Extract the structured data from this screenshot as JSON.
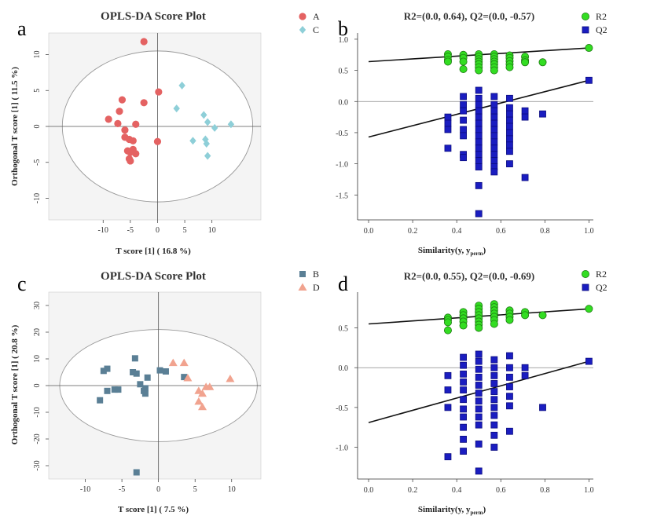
{
  "panel_letters": [
    "a",
    "b",
    "c",
    "d"
  ],
  "colors": {
    "A": "#E46262",
    "C": "#8ECFD8",
    "B": "#5A7F95",
    "D": "#F1A38F",
    "R2": "#33DD22",
    "Q2": "#1A1DC0",
    "plot_bg": "#F4F4F4"
  },
  "chart_data": [
    {
      "id": "a",
      "type": "scatter",
      "title": "OPLS-DA Score Plot",
      "xlabel": "T score [1] ( 16.8 %)",
      "ylabel": "Orthogonal T score [1] ( 11.5 %)",
      "xlim": [
        -20,
        19
      ],
      "ylim": [
        -13,
        13
      ],
      "xticks": [
        -10,
        -5,
        0,
        5,
        10
      ],
      "yticks": [
        -10,
        -5,
        0,
        5,
        10
      ],
      "ellipse": {
        "rx": 17.5,
        "ry": 10.5
      },
      "series": [
        {
          "name": "A",
          "marker": "circle",
          "points": [
            [
              -2.5,
              11.8
            ],
            [
              0.2,
              4.8
            ],
            [
              -2.5,
              3.3
            ],
            [
              -6.5,
              3.7
            ],
            [
              -7,
              2.1
            ],
            [
              -9,
              1.0
            ],
            [
              -7.3,
              0.4
            ],
            [
              -4,
              0.3
            ],
            [
              -6,
              -0.5
            ],
            [
              -6,
              -1.5
            ],
            [
              -5.2,
              -1.8
            ],
            [
              -4.5,
              -2.0
            ],
            [
              0,
              -2.1
            ],
            [
              -5.5,
              -3.4
            ],
            [
              -4.5,
              -3.2
            ],
            [
              -5,
              -3.6
            ],
            [
              -4,
              -3.8
            ],
            [
              -5.2,
              -4.5
            ],
            [
              -5,
              -4.8
            ]
          ]
        },
        {
          "name": "C",
          "marker": "diamond",
          "points": [
            [
              4.5,
              5.7
            ],
            [
              3.5,
              2.5
            ],
            [
              8.5,
              1.6
            ],
            [
              9.2,
              0.6
            ],
            [
              13.5,
              0.3
            ],
            [
              10.5,
              -0.2
            ],
            [
              6.5,
              -2.0
            ],
            [
              8.8,
              -1.8
            ],
            [
              9,
              -2.4
            ],
            [
              9.2,
              -4.1
            ]
          ]
        }
      ],
      "legend_position": "top-right"
    },
    {
      "id": "b",
      "type": "scatter",
      "title": "R2=(0.0, 0.64), Q2=(0.0, -0.57)",
      "xlabel": "Similarity(y, y",
      "xlabel_sub": "perm",
      "xlabel_end": ")",
      "xlim": [
        -0.05,
        1.02
      ],
      "ylim": [
        -1.9,
        1.1
      ],
      "xticks": [
        0.0,
        0.2,
        0.4,
        0.6,
        0.8,
        1.0
      ],
      "yticks": [
        -1.5,
        -1.0,
        -0.5,
        0.0,
        0.5,
        1.0
      ],
      "fit_lines": [
        {
          "name": "R2",
          "from": [
            0,
            0.64
          ],
          "to": [
            1,
            0.86
          ]
        },
        {
          "name": "Q2",
          "from": [
            0,
            -0.57
          ],
          "to": [
            1,
            0.34
          ]
        }
      ],
      "series": [
        {
          "name": "R2",
          "marker": "circle",
          "points": [
            [
              0.36,
              0.76
            ],
            [
              0.36,
              0.72
            ],
            [
              0.36,
              0.67
            ],
            [
              0.36,
              0.64
            ],
            [
              0.43,
              0.75
            ],
            [
              0.43,
              0.7
            ],
            [
              0.43,
              0.64
            ],
            [
              0.43,
              0.52
            ],
            [
              0.5,
              0.76
            ],
            [
              0.5,
              0.72
            ],
            [
              0.5,
              0.68
            ],
            [
              0.5,
              0.64
            ],
            [
              0.5,
              0.6
            ],
            [
              0.5,
              0.55
            ],
            [
              0.5,
              0.5
            ],
            [
              0.57,
              0.76
            ],
            [
              0.57,
              0.72
            ],
            [
              0.57,
              0.68
            ],
            [
              0.57,
              0.64
            ],
            [
              0.57,
              0.6
            ],
            [
              0.57,
              0.55
            ],
            [
              0.57,
              0.5
            ],
            [
              0.64,
              0.74
            ],
            [
              0.64,
              0.7
            ],
            [
              0.64,
              0.65
            ],
            [
              0.64,
              0.6
            ],
            [
              0.64,
              0.55
            ],
            [
              0.71,
              0.72
            ],
            [
              0.71,
              0.66
            ],
            [
              0.71,
              0.63
            ],
            [
              0.79,
              0.63
            ],
            [
              1.0,
              0.86
            ]
          ]
        },
        {
          "name": "Q2",
          "marker": "square",
          "points": [
            [
              0.36,
              -0.25
            ],
            [
              0.36,
              -0.35
            ],
            [
              0.36,
              -0.45
            ],
            [
              0.36,
              -0.75
            ],
            [
              0.43,
              0.08
            ],
            [
              0.43,
              -0.05
            ],
            [
              0.43,
              -0.15
            ],
            [
              0.43,
              -0.3
            ],
            [
              0.43,
              -0.45
            ],
            [
              0.43,
              -0.55
            ],
            [
              0.43,
              -0.85
            ],
            [
              0.43,
              -0.9
            ],
            [
              0.5,
              0.18
            ],
            [
              0.5,
              0.05
            ],
            [
              0.5,
              -0.05
            ],
            [
              0.5,
              -0.15
            ],
            [
              0.5,
              -0.25
            ],
            [
              0.5,
              -0.35
            ],
            [
              0.5,
              -0.45
            ],
            [
              0.5,
              -0.55
            ],
            [
              0.5,
              -0.65
            ],
            [
              0.5,
              -0.75
            ],
            [
              0.5,
              -0.85
            ],
            [
              0.5,
              -0.95
            ],
            [
              0.5,
              -1.05
            ],
            [
              0.5,
              -1.35
            ],
            [
              0.5,
              -1.8
            ],
            [
              0.57,
              0.08
            ],
            [
              0.57,
              -0.05
            ],
            [
              0.57,
              -0.15
            ],
            [
              0.57,
              -0.25
            ],
            [
              0.57,
              -0.35
            ],
            [
              0.57,
              -0.45
            ],
            [
              0.57,
              -0.55
            ],
            [
              0.57,
              -0.65
            ],
            [
              0.57,
              -0.75
            ],
            [
              0.57,
              -0.85
            ],
            [
              0.57,
              -0.95
            ],
            [
              0.57,
              -1.05
            ],
            [
              0.57,
              -1.13
            ],
            [
              0.64,
              0.05
            ],
            [
              0.64,
              -0.1
            ],
            [
              0.64,
              -0.2
            ],
            [
              0.64,
              -0.3
            ],
            [
              0.64,
              -0.4
            ],
            [
              0.64,
              -0.5
            ],
            [
              0.64,
              -0.6
            ],
            [
              0.64,
              -0.7
            ],
            [
              0.64,
              -0.8
            ],
            [
              0.64,
              -1.0
            ],
            [
              0.71,
              -0.15
            ],
            [
              0.71,
              -0.25
            ],
            [
              0.71,
              -1.22
            ],
            [
              0.79,
              -0.2
            ],
            [
              1.0,
              0.34
            ]
          ]
        }
      ],
      "legend_position": "top-right"
    },
    {
      "id": "c",
      "type": "scatter",
      "title": "OPLS-DA Score Plot",
      "xlabel": "T score [1] ( 7.5 %)",
      "ylabel": "Orthogonal T score [1] ( 20.8 %)",
      "xlim": [
        -15,
        14
      ],
      "ylim": [
        -35,
        35
      ],
      "xticks": [
        -10,
        -5,
        0,
        5,
        10
      ],
      "yticks": [
        -30,
        -20,
        -10,
        0,
        10,
        20,
        30
      ],
      "ellipse": {
        "rx": 13.5,
        "ry": 21
      },
      "series": [
        {
          "name": "B",
          "marker": "square",
          "points": [
            [
              -3.2,
              10.2
            ],
            [
              -7,
              6.3
            ],
            [
              -7.5,
              5.5
            ],
            [
              -3.5,
              5.0
            ],
            [
              -3,
              4.5
            ],
            [
              0.2,
              5.7
            ],
            [
              1,
              5.3
            ],
            [
              -1.5,
              3.0
            ],
            [
              3.5,
              3.2
            ],
            [
              -6,
              -1.5
            ],
            [
              -7,
              -2.0
            ],
            [
              -5.5,
              -1.5
            ],
            [
              -2.5,
              0.5
            ],
            [
              -1.8,
              -1.0
            ],
            [
              -2,
              -2.0
            ],
            [
              -1.8,
              -3.0
            ],
            [
              -8,
              -5.5
            ],
            [
              -3,
              -32.5
            ]
          ]
        },
        {
          "name": "D",
          "marker": "triangle",
          "points": [
            [
              2,
              8.5
            ],
            [
              3.5,
              8.5
            ],
            [
              4,
              2.8
            ],
            [
              9.8,
              2.5
            ],
            [
              6.5,
              -0.5
            ],
            [
              7,
              -0.5
            ],
            [
              5.5,
              -2.0
            ],
            [
              6,
              -3.0
            ],
            [
              5.5,
              -6.0
            ],
            [
              6,
              -8.0
            ]
          ]
        }
      ],
      "legend_position": "top-right"
    },
    {
      "id": "d",
      "type": "scatter",
      "title": "R2=(0.0, 0.55), Q2=(0.0, -0.69)",
      "xlabel": "Similarity(y, y",
      "xlabel_sub": "perm",
      "xlabel_end": ")",
      "xlim": [
        -0.05,
        1.02
      ],
      "ylim": [
        -1.4,
        0.95
      ],
      "xticks": [
        0.0,
        0.2,
        0.4,
        0.6,
        0.8,
        1.0
      ],
      "yticks": [
        -1.0,
        -0.5,
        0.0,
        0.5
      ],
      "fit_lines": [
        {
          "name": "R2",
          "from": [
            0,
            0.55
          ],
          "to": [
            1,
            0.74
          ]
        },
        {
          "name": "Q2",
          "from": [
            0,
            -0.69
          ],
          "to": [
            1,
            0.08
          ]
        }
      ],
      "series": [
        {
          "name": "R2",
          "marker": "circle",
          "points": [
            [
              0.36,
              0.63
            ],
            [
              0.36,
              0.6
            ],
            [
              0.36,
              0.57
            ],
            [
              0.36,
              0.47
            ],
            [
              0.43,
              0.7
            ],
            [
              0.43,
              0.66
            ],
            [
              0.43,
              0.62
            ],
            [
              0.43,
              0.58
            ],
            [
              0.43,
              0.53
            ],
            [
              0.5,
              0.78
            ],
            [
              0.5,
              0.74
            ],
            [
              0.5,
              0.7
            ],
            [
              0.5,
              0.66
            ],
            [
              0.5,
              0.62
            ],
            [
              0.5,
              0.58
            ],
            [
              0.5,
              0.54
            ],
            [
              0.5,
              0.5
            ],
            [
              0.57,
              0.8
            ],
            [
              0.57,
              0.76
            ],
            [
              0.57,
              0.72
            ],
            [
              0.57,
              0.68
            ],
            [
              0.57,
              0.64
            ],
            [
              0.57,
              0.6
            ],
            [
              0.57,
              0.55
            ],
            [
              0.64,
              0.72
            ],
            [
              0.64,
              0.68
            ],
            [
              0.64,
              0.64
            ],
            [
              0.64,
              0.6
            ],
            [
              0.71,
              0.7
            ],
            [
              0.71,
              0.66
            ],
            [
              0.79,
              0.66
            ],
            [
              1.0,
              0.74
            ]
          ]
        },
        {
          "name": "Q2",
          "marker": "square",
          "points": [
            [
              0.36,
              -0.1
            ],
            [
              0.36,
              -0.28
            ],
            [
              0.36,
              -0.5
            ],
            [
              0.36,
              -1.12
            ],
            [
              0.43,
              0.13
            ],
            [
              0.43,
              0.03
            ],
            [
              0.43,
              -0.08
            ],
            [
              0.43,
              -0.18
            ],
            [
              0.43,
              -0.28
            ],
            [
              0.43,
              -0.4
            ],
            [
              0.43,
              -0.52
            ],
            [
              0.43,
              -0.62
            ],
            [
              0.43,
              -0.75
            ],
            [
              0.43,
              -0.9
            ],
            [
              0.43,
              -1.05
            ],
            [
              0.5,
              0.17
            ],
            [
              0.5,
              0.08
            ],
            [
              0.5,
              -0.02
            ],
            [
              0.5,
              -0.12
            ],
            [
              0.5,
              -0.22
            ],
            [
              0.5,
              -0.32
            ],
            [
              0.5,
              -0.42
            ],
            [
              0.5,
              -0.52
            ],
            [
              0.5,
              -0.62
            ],
            [
              0.5,
              -0.72
            ],
            [
              0.5,
              -0.96
            ],
            [
              0.5,
              -1.3
            ],
            [
              0.57,
              0.1
            ],
            [
              0.57,
              0.0
            ],
            [
              0.57,
              -0.1
            ],
            [
              0.57,
              -0.2
            ],
            [
              0.57,
              -0.3
            ],
            [
              0.57,
              -0.4
            ],
            [
              0.57,
              -0.5
            ],
            [
              0.57,
              -0.6
            ],
            [
              0.57,
              -0.72
            ],
            [
              0.57,
              -0.85
            ],
            [
              0.57,
              -1.0
            ],
            [
              0.64,
              0.15
            ],
            [
              0.64,
              0.0
            ],
            [
              0.64,
              -0.12
            ],
            [
              0.64,
              -0.24
            ],
            [
              0.64,
              -0.36
            ],
            [
              0.64,
              -0.48
            ],
            [
              0.64,
              -0.8
            ],
            [
              0.71,
              0.0
            ],
            [
              0.71,
              -0.1
            ],
            [
              0.79,
              -0.5
            ],
            [
              1.0,
              0.08
            ]
          ]
        }
      ],
      "legend_position": "top-right"
    }
  ]
}
